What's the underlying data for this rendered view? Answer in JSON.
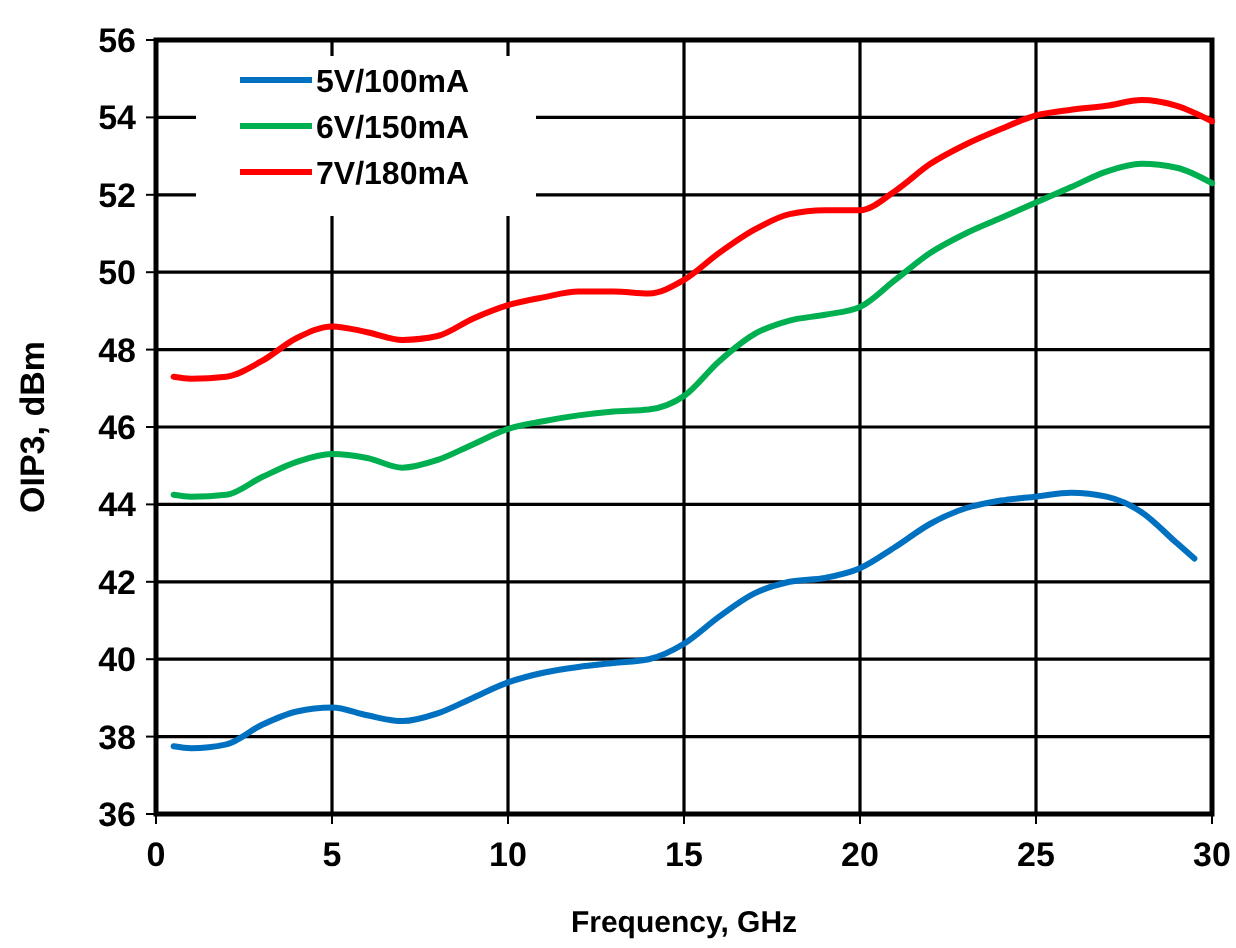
{
  "chart_data": {
    "type": "line",
    "xlabel": "Frequency, GHz",
    "ylabel": "OIP3, dBm",
    "xlim": [
      0,
      30
    ],
    "xticks": [
      0,
      5,
      10,
      15,
      20,
      25,
      30
    ],
    "ylim": [
      36,
      56
    ],
    "yticks": [
      36,
      38,
      40,
      42,
      44,
      46,
      48,
      50,
      52,
      54,
      56
    ],
    "grid": true,
    "legend": "top left",
    "marker": "none",
    "line_style": "solid",
    "series": [
      {
        "name": "5V/100mA",
        "color": "#0070c0",
        "x": [
          0.5,
          1,
          2,
          3,
          4,
          5,
          6,
          7,
          8,
          9,
          10,
          11,
          12,
          13,
          14,
          15,
          16,
          17,
          18,
          19,
          20,
          21,
          22,
          23,
          24,
          25,
          26,
          27,
          28,
          29,
          29.5
        ],
        "values": [
          37.75,
          37.7,
          37.8,
          38.3,
          38.65,
          38.75,
          38.55,
          38.4,
          38.6,
          39.0,
          39.4,
          39.65,
          39.8,
          39.9,
          40.0,
          40.4,
          41.1,
          41.7,
          42.0,
          42.1,
          42.35,
          42.9,
          43.5,
          43.9,
          44.1,
          44.2,
          44.3,
          44.2,
          43.8,
          43.0,
          42.6
        ]
      },
      {
        "name": "6V/150mA",
        "color": "#00b050",
        "x": [
          0.5,
          1,
          2,
          3,
          4,
          5,
          6,
          7,
          8,
          9,
          10,
          11,
          12,
          13,
          14,
          15,
          16,
          17,
          18,
          19,
          20,
          21,
          22,
          23,
          24,
          25,
          26,
          27,
          28,
          29,
          30
        ],
        "values": [
          44.25,
          44.2,
          44.25,
          44.7,
          45.1,
          45.3,
          45.2,
          44.95,
          45.15,
          45.55,
          45.95,
          46.15,
          46.3,
          46.4,
          46.45,
          46.8,
          47.7,
          48.4,
          48.75,
          48.9,
          49.1,
          49.8,
          50.5,
          51.0,
          51.4,
          51.8,
          52.2,
          52.6,
          52.8,
          52.7,
          52.3
        ]
      },
      {
        "name": "7V/180mA",
        "color": "#ff0000",
        "x": [
          0.5,
          1,
          2,
          3,
          4,
          5,
          6,
          7,
          8,
          9,
          10,
          11,
          12,
          13,
          14,
          15,
          16,
          17,
          18,
          19,
          20,
          21,
          22,
          23,
          24,
          25,
          26,
          27,
          28,
          29,
          30
        ],
        "values": [
          47.3,
          47.25,
          47.3,
          47.7,
          48.3,
          48.6,
          48.45,
          48.25,
          48.35,
          48.8,
          49.15,
          49.35,
          49.5,
          49.5,
          49.45,
          49.8,
          50.5,
          51.1,
          51.5,
          51.6,
          51.6,
          52.1,
          52.8,
          53.3,
          53.7,
          54.05,
          54.2,
          54.3,
          54.45,
          54.3,
          53.9
        ]
      }
    ]
  }
}
